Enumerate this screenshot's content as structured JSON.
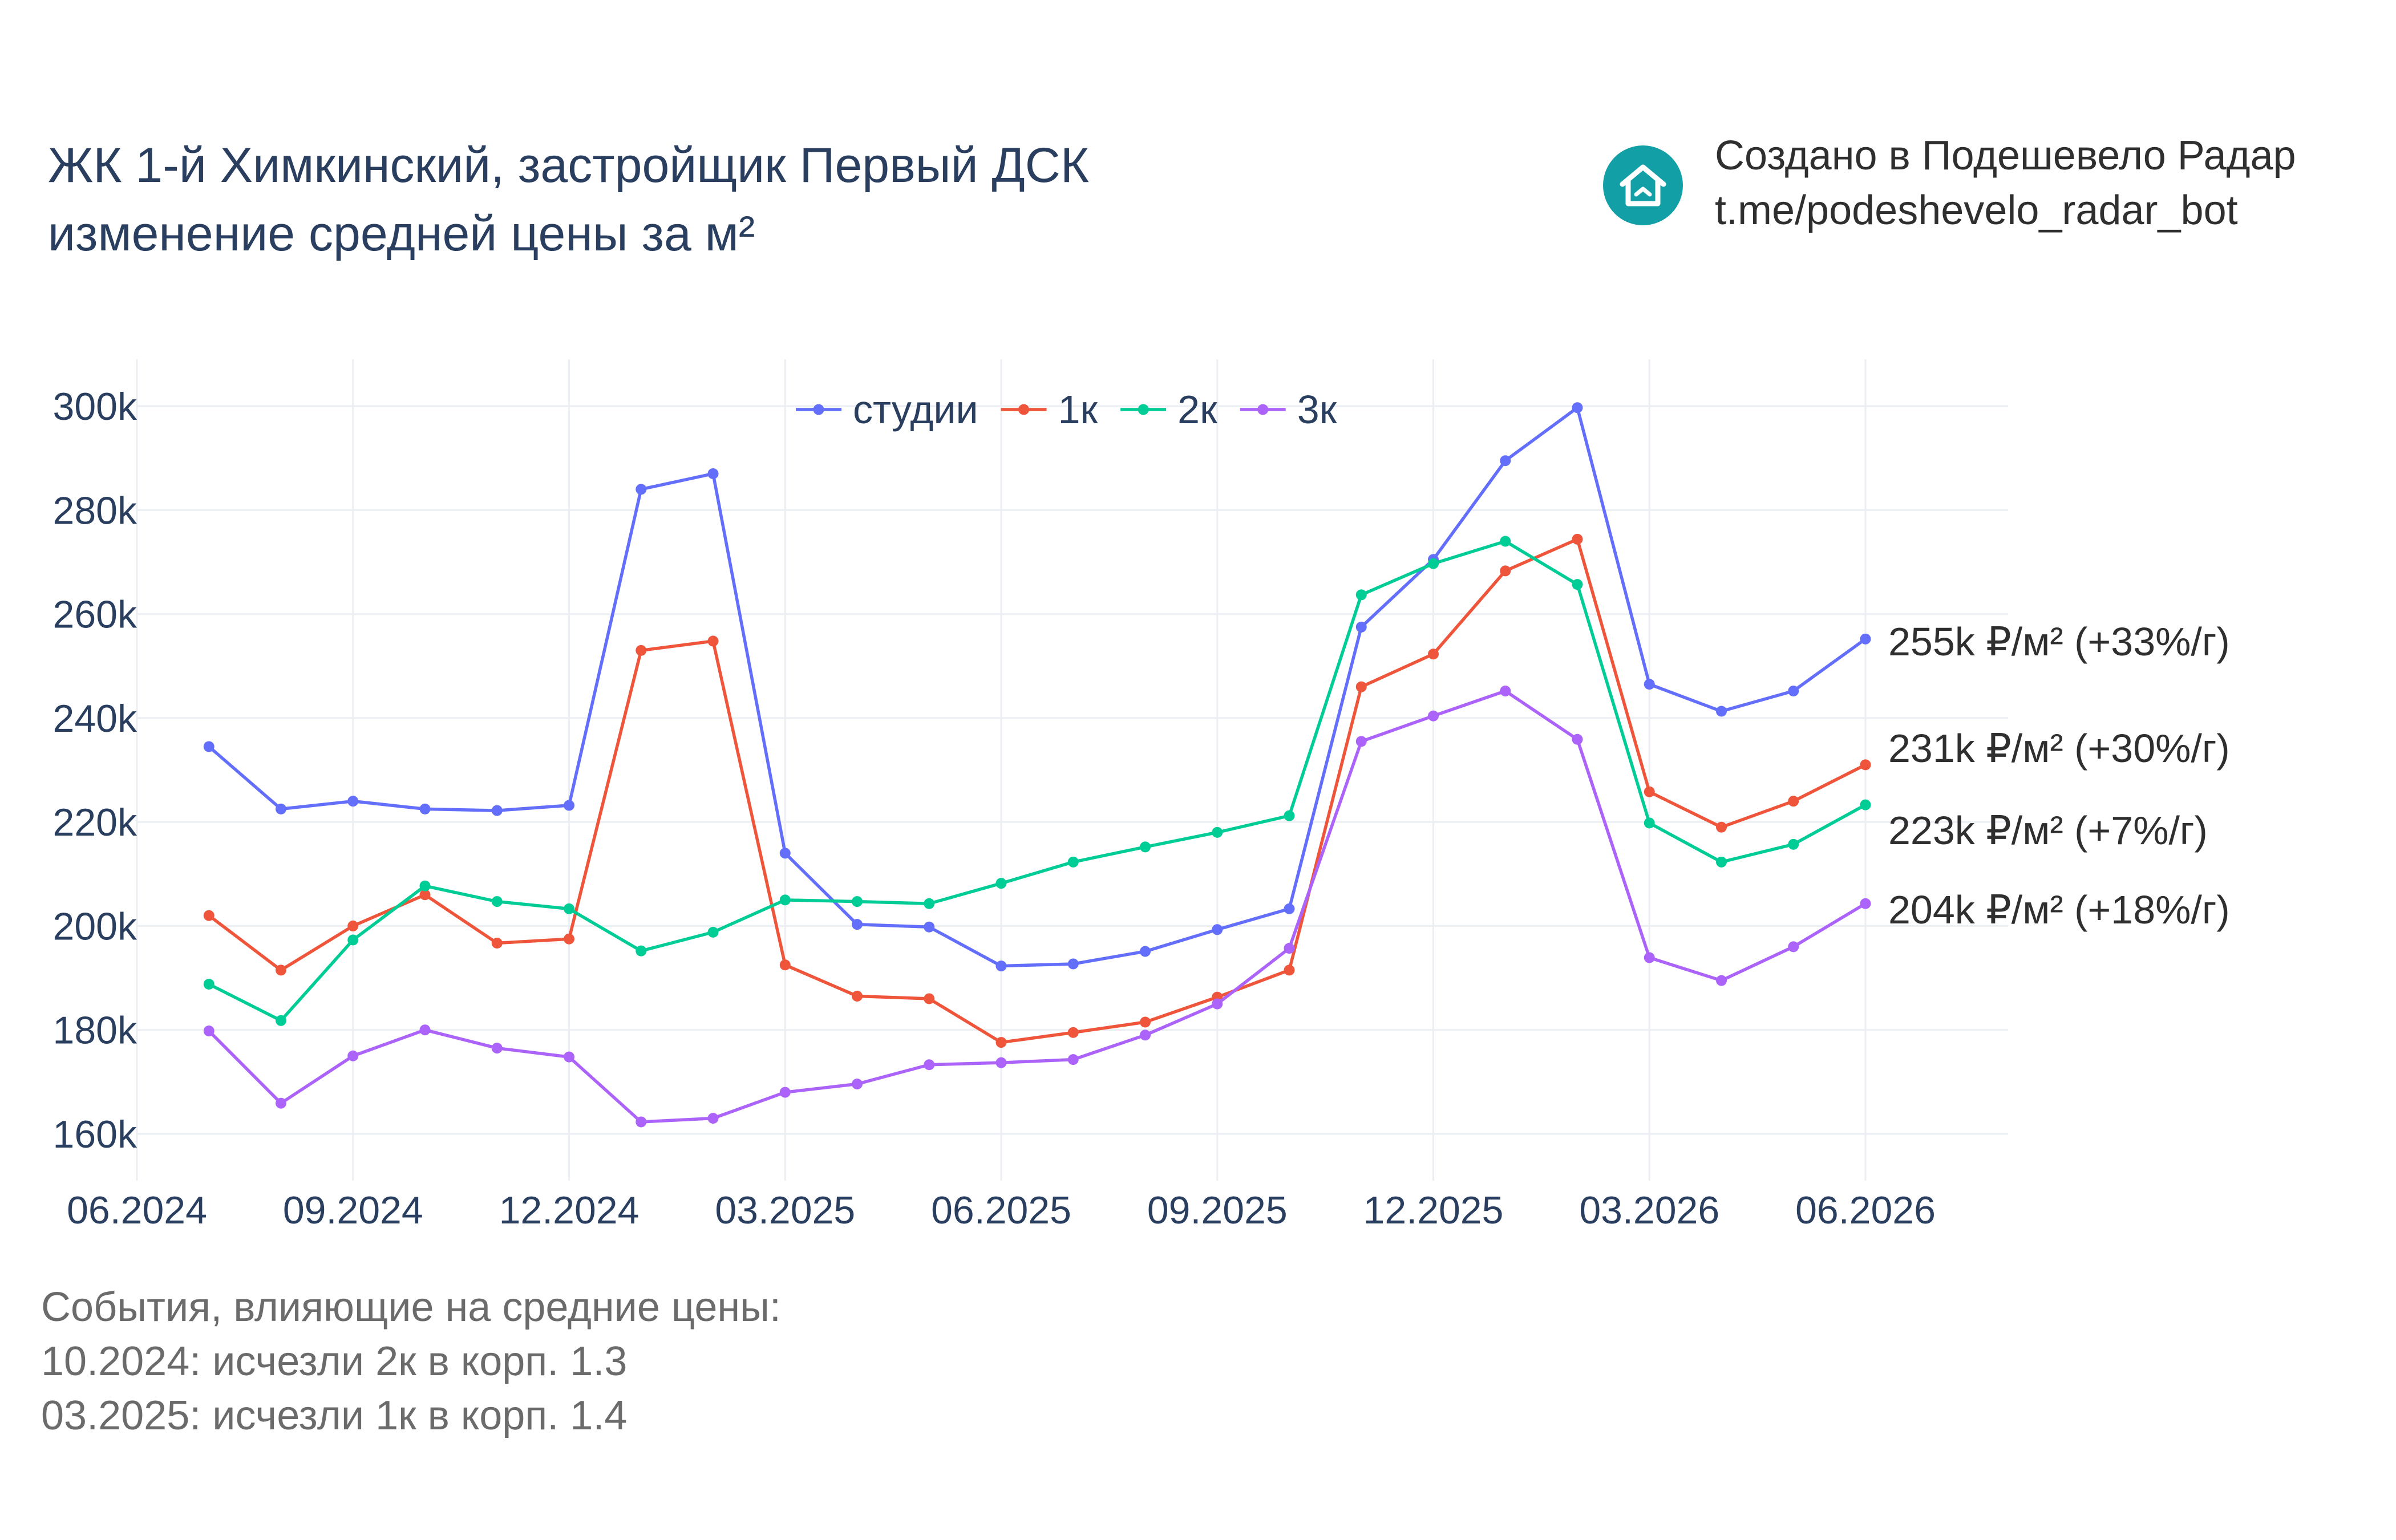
{
  "title": {
    "line1": "ЖК 1-й Химкинский, застройщик Первый ДСК",
    "line2": "изменение средней цены за м²"
  },
  "brand": {
    "line1": "Создано в Подешевело Радар",
    "line2": "t.me/podeshevelo_radar_bot",
    "icon": "house-icon",
    "color": "#12a0a6"
  },
  "events": {
    "heading": "События, влияющие на средние цены:",
    "items": [
      "10.2024: исчезли 2к в корп. 1.3",
      "03.2025: исчезли 1к в корп. 1.4"
    ]
  },
  "chart_data": {
    "type": "line",
    "x": [
      "07.2024",
      "08.2024",
      "09.2024",
      "10.2024",
      "11.2024",
      "12.2024",
      "01.2025",
      "02.2025",
      "03.2025",
      "04.2025",
      "05.2025",
      "06.2025",
      "07.2025",
      "08.2025",
      "09.2025",
      "10.2025",
      "11.2025",
      "12.2025",
      "01.2026",
      "02.2026",
      "03.2026",
      "04.2026",
      "05.2026",
      "06.2026"
    ],
    "x_ticks": [
      "06.2024",
      "09.2024",
      "12.2024",
      "03.2025",
      "06.2025",
      "09.2025",
      "12.2025",
      "03.2026",
      "06.2026"
    ],
    "y_ticks": [
      "160k",
      "180k",
      "200k",
      "220k",
      "240k",
      "260k",
      "280k",
      "300k"
    ],
    "ylim": [
      151000,
      309000
    ],
    "grid": true,
    "legend_position": "top-center",
    "series": [
      {
        "name": "студии",
        "color": "#636efa",
        "end_label": "255k ₽/м² (+33%/г)",
        "values": [
          234500,
          222500,
          224000,
          222500,
          222200,
          223200,
          284000,
          287000,
          214000,
          200300,
          199800,
          192300,
          192700,
          195100,
          199300,
          203300,
          257500,
          270500,
          289500,
          299700,
          246500,
          241300,
          245200,
          255200
        ]
      },
      {
        "name": "1к",
        "color": "#ef553b",
        "end_label": "231k ₽/м² (+30%/г)",
        "values": [
          202000,
          191500,
          200000,
          206000,
          196700,
          197500,
          253000,
          254800,
          192500,
          186500,
          186000,
          177600,
          179500,
          181500,
          186300,
          191500,
          246000,
          252300,
          268300,
          274400,
          225800,
          219000,
          224000,
          231000
        ]
      },
      {
        "name": "2к",
        "color": "#00cc96",
        "end_label": "223k ₽/м² (+7%/г)",
        "values": [
          188800,
          181800,
          197300,
          207700,
          204700,
          203300,
          195200,
          198800,
          205000,
          204700,
          204300,
          208200,
          212300,
          215200,
          218000,
          221200,
          263700,
          269700,
          274000,
          265700,
          219800,
          212300,
          215700,
          223300
        ]
      },
      {
        "name": "3к",
        "color": "#ab63fa",
        "end_label": "204k ₽/м² (+18%/г)",
        "values": [
          179800,
          165900,
          175000,
          180000,
          176500,
          174800,
          162300,
          163000,
          168000,
          169600,
          173300,
          173700,
          174300,
          179000,
          185000,
          195700,
          235500,
          240400,
          245200,
          235900,
          193900,
          189500,
          196000,
          204300
        ]
      }
    ]
  }
}
